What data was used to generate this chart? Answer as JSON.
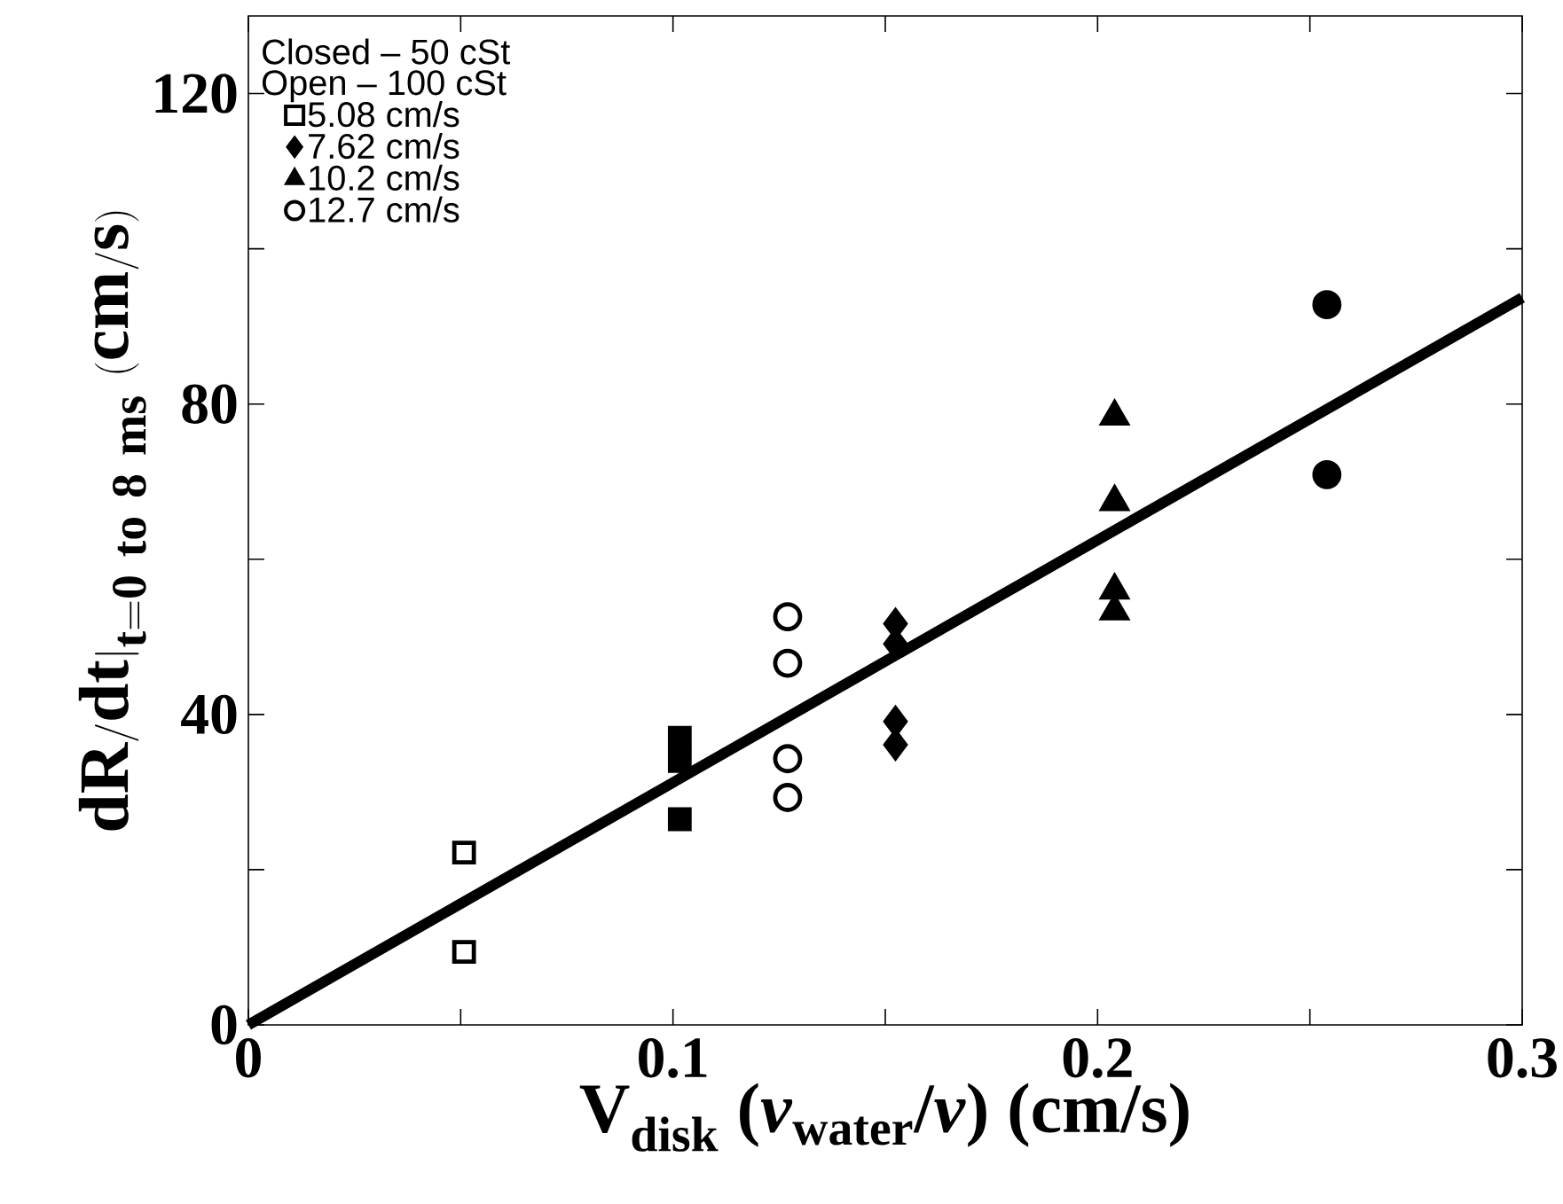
{
  "chart_data": {
    "type": "scatter",
    "xlabel": "V$_{disk}$ (*ν*$_{water}$/*ν*) (cm/s)",
    "ylabel": "\\mathbf{dR/dt|_{t=0\\ to\\ 8\\ ms}\\ (cm/s)}",
    "annotations": [
      "Closed – 50 cSt",
      "Open – 100 cSt"
    ],
    "xlim": [
      0,
      0.3
    ],
    "ylim": [
      0,
      130
    ],
    "xticks": [
      0,
      {
        "value": 0.05,
        "label": null
      },
      0.1,
      {
        "value": 0.15,
        "label": null
      },
      0.2,
      {
        "value": 0.25,
        "label": null
      },
      0.3
    ],
    "yticks": [
      0,
      {
        "value": 20,
        "label": null
      },
      40,
      {
        "value": 60,
        "label": null
      },
      80,
      {
        "value": 100,
        "label": null
      },
      120
    ],
    "legend": "top left",
    "series": [
      {
        "name": "5.08 cm/s",
        "marker": "square",
        "color": "#ffffff",
        "x": [
          0.0508,
          0.0508
        ],
        "values": [
          22.2,
          9.4
        ]
      },
      {
        "marker": "square",
        "color": "#000000",
        "x": [
          0.1016,
          0.1016,
          0.1016
        ],
        "values": [
          37,
          34,
          26.5
        ]
      },
      {
        "name": "7.62 cm/s",
        "marker": "diamond",
        "color": "#000000",
        "x": [
          0.1524,
          0.1524,
          0.1524,
          0.1524
        ],
        "values": [
          51.7,
          49.1,
          39.1,
          36.1
        ]
      },
      {
        "name": "10.2 cm/s",
        "marker": "triangle",
        "color": "#000000",
        "x": [
          0.204,
          0.204,
          0.204,
          0.204
        ],
        "values": [
          78.4,
          67.4,
          56,
          53.3
        ]
      },
      {
        "name": "12.7 cm/s",
        "marker": "circle",
        "color": "#ffffff",
        "x": [
          0.127,
          0.127,
          0.127,
          0.127
        ],
        "values": [
          52.6,
          46.6,
          34.3,
          29.3
        ]
      },
      {
        "marker": "circle",
        "color": "#000000",
        "x": [
          0.254,
          0.254
        ],
        "values": [
          92.8,
          70.9
        ]
      },
      {
        "type": "line",
        "marker": "none",
        "color": "#000000",
        "x": [
          0,
          0.3
        ],
        "values": [
          0,
          93.7
        ]
      }
    ]
  }
}
